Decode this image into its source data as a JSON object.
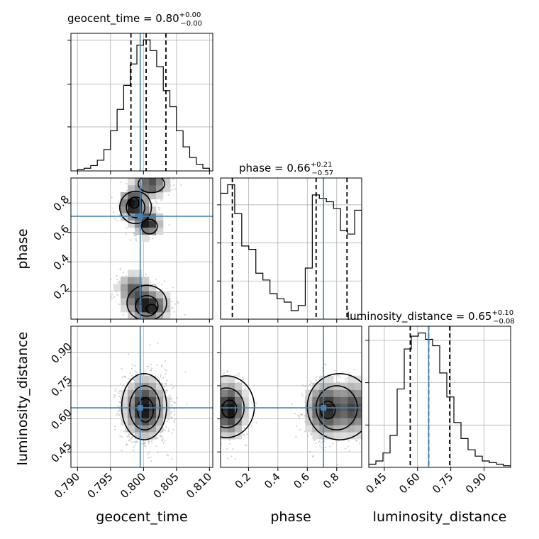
{
  "chart_data": {
    "type": "corner",
    "parameters": [
      "geocent_time",
      "phase",
      "luminosity_distance"
    ],
    "truths": {
      "geocent_time": 0.7995,
      "phase": 0.71,
      "luminosity_distance": 0.65
    },
    "truth_color": "#4682b4",
    "axes": {
      "geocent_time": {
        "lim": [
          0.789,
          0.8105
        ],
        "ticks": [
          0.79,
          0.795,
          0.8,
          0.805,
          0.81
        ],
        "tick_labels": [
          "0.790",
          "0.795",
          "0.800",
          "0.805",
          "0.810"
        ]
      },
      "phase": {
        "lim": [
          0.01,
          0.97
        ],
        "ticks_x": [
          0.2,
          0.4,
          0.6,
          0.8
        ],
        "tick_labels_x": [
          "0.2",
          "0.4",
          "0.6",
          "0.8"
        ],
        "ticks_y": [
          0.2,
          0.4,
          0.6,
          0.8
        ],
        "tick_labels_y": [
          "0.2",
          "0.4",
          "0.6",
          "0.8"
        ]
      },
      "luminosity_distance": {
        "lim": [
          0.38,
          1.02
        ],
        "ticks": [
          0.45,
          0.6,
          0.75,
          0.9
        ],
        "tick_labels": [
          "0.45",
          "0.60",
          "0.75",
          "0.90"
        ]
      }
    },
    "titles": [
      {
        "param": "geocent_time",
        "text": "geocent_time = 0.80",
        "plus": "+0.00",
        "minus": "−0.00"
      },
      {
        "param": "phase",
        "text": "phase = 0.66",
        "plus": "+0.21",
        "minus": "−0.57"
      },
      {
        "param": "luminosity_distance",
        "text": "luminosity_distance = 0.65",
        "plus": "+0.10",
        "minus": "−0.08"
      }
    ],
    "quantiles": {
      "geocent_time": [
        0.7981,
        0.8004,
        0.8034
      ],
      "phase": [
        0.09,
        0.66,
        0.87
      ],
      "luminosity_distance": [
        0.567,
        0.65,
        0.745
      ]
    },
    "histograms": {
      "geocent_time": {
        "edges": [
          0.79,
          0.791,
          0.792,
          0.793,
          0.794,
          0.795,
          0.796,
          0.797,
          0.798,
          0.799,
          0.8,
          0.801,
          0.802,
          0.803,
          0.804,
          0.805,
          0.806,
          0.807,
          0.808,
          0.809,
          0.81
        ],
        "counts": [
          1,
          2,
          4,
          8,
          16,
          30,
          46,
          64,
          80,
          94,
          98,
          90,
          78,
          60,
          48,
          30,
          18,
          10,
          5,
          2
        ]
      },
      "phase": {
        "edges": [
          0.01,
          0.058,
          0.106,
          0.154,
          0.202,
          0.25,
          0.298,
          0.346,
          0.394,
          0.442,
          0.49,
          0.538,
          0.586,
          0.634,
          0.682,
          0.73,
          0.778,
          0.826,
          0.874,
          0.922,
          0.97
        ],
        "counts": [
          74,
          79,
          62,
          43,
          41,
          27,
          23,
          15,
          12,
          10,
          5,
          8,
          30,
          73,
          71,
          69,
          65,
          52,
          50,
          64
        ]
      },
      "luminosity_distance": {
        "edges": [
          0.38,
          0.412,
          0.444,
          0.476,
          0.508,
          0.54,
          0.572,
          0.604,
          0.636,
          0.668,
          0.7,
          0.732,
          0.764,
          0.796,
          0.828,
          0.86,
          0.892,
          0.924,
          0.956,
          0.988,
          1.02
        ],
        "counts": [
          2,
          4,
          9,
          20,
          49,
          74,
          82,
          84,
          80,
          76,
          59,
          44,
          28,
          18,
          11,
          7,
          4,
          3,
          2,
          1
        ]
      }
    },
    "grid": true
  }
}
